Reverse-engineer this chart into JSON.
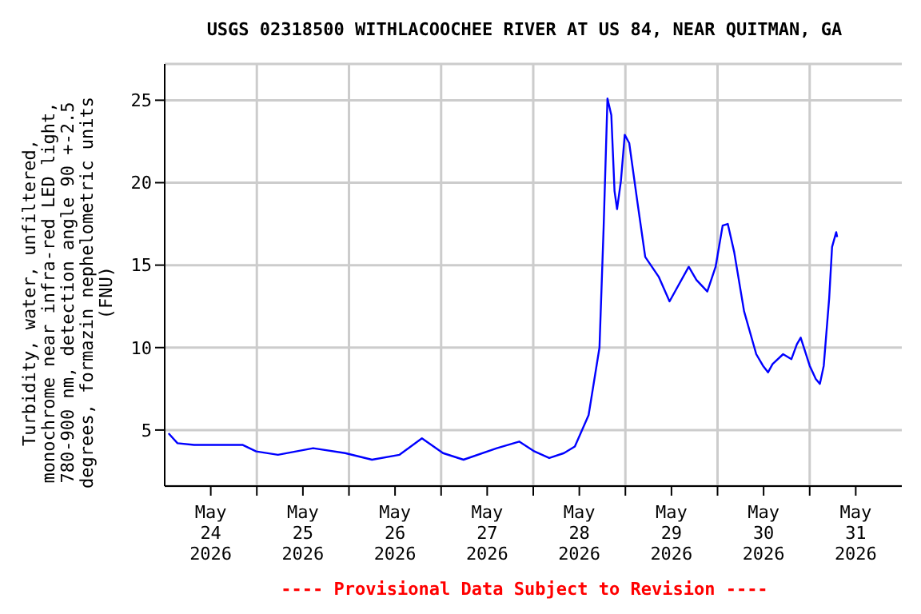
{
  "chart_data": {
    "type": "line",
    "title": "USGS 02318500 WITHLACOOCHEE RIVER AT US 84, NEAR QUITMAN, GA",
    "ylabel": "Turbidity, water, unfiltered,\nmonochrome near infra-red LED light,\n780-900 nm, detection angle 90 +-2.5\ndegrees, formazin nephelometric units\n(FNU)",
    "annotations": [
      "---- Provisional Data Subject to Revision ----"
    ],
    "x": [
      "2026-05-24T01:00",
      "2026-05-24T03:20",
      "2026-05-24T07:40",
      "2026-05-24T20:15",
      "2026-05-24T23:50",
      "2026-05-25T05:30",
      "2026-05-25T14:40",
      "2026-05-25T23:00",
      "2026-05-26T06:00",
      "2026-05-26T13:10",
      "2026-05-26T19:00",
      "2026-05-27T00:30",
      "2026-05-27T05:50",
      "2026-05-27T14:30",
      "2026-05-27T20:20",
      "2026-05-28T00:20",
      "2026-05-28T04:10",
      "2026-05-28T08:00",
      "2026-05-28T10:50",
      "2026-05-28T14:25",
      "2026-05-28T17:15",
      "2026-05-28T18:20",
      "2026-05-28T19:20",
      "2026-05-28T20:20",
      "2026-05-28T21:10",
      "2026-05-28T21:50",
      "2026-05-28T22:50",
      "2026-05-28T23:50",
      "2026-05-29T01:00",
      "2026-05-29T03:05",
      "2026-05-29T05:10",
      "2026-05-29T08:40",
      "2026-05-29T11:30",
      "2026-05-29T16:30",
      "2026-05-29T18:30",
      "2026-05-29T21:20",
      "2026-05-29T23:30",
      "2026-05-30T01:20",
      "2026-05-30T02:40",
      "2026-05-30T04:20",
      "2026-05-30T06:55",
      "2026-05-30T10:05",
      "2026-05-30T11:50",
      "2026-05-30T13:10",
      "2026-05-30T14:20",
      "2026-05-30T17:05",
      "2026-05-30T19:15",
      "2026-05-30T20:40",
      "2026-05-30T21:40",
      "2026-05-31T00:00",
      "2026-05-31T01:35",
      "2026-05-31T02:40",
      "2026-05-31T03:40",
      "2026-05-31T05:05",
      "2026-05-31T05:50",
      "2026-05-31T06:55",
      "2026-05-31T07:10"
    ],
    "series": [
      {
        "color": "#0000ff",
        "values": [
          4.8,
          4.2,
          4.1,
          4.1,
          3.7,
          3.5,
          3.9,
          3.6,
          3.2,
          3.5,
          4.5,
          3.6,
          3.2,
          3.9,
          4.3,
          3.7,
          3.3,
          3.6,
          4.0,
          5.9,
          10.0,
          17.3,
          25.1,
          24.1,
          19.5,
          18.4,
          20.1,
          22.9,
          22.4,
          18.9,
          15.5,
          14.3,
          12.8,
          14.9,
          14.1,
          13.4,
          14.9,
          17.4,
          17.5,
          15.8,
          12.2,
          9.6,
          8.9,
          8.5,
          9.0,
          9.6,
          9.3,
          10.2,
          10.6,
          8.9,
          8.1,
          7.8,
          8.9,
          13.0,
          16.1,
          17.0,
          16.7
        ]
      }
    ],
    "xlim": [
      "2026-05-24T00:00",
      "2026-06-01T00:00"
    ],
    "xticks": [
      {
        "value": "2026-05-24T12:00",
        "label": "May\n24\n2026"
      },
      {
        "value": "2026-05-25T00:00",
        "label": null
      },
      {
        "value": "2026-05-25T12:00",
        "label": "May\n25\n2026"
      },
      {
        "value": "2026-05-26T00:00",
        "label": null
      },
      {
        "value": "2026-05-26T12:00",
        "label": "May\n26\n2026"
      },
      {
        "value": "2026-05-27T00:00",
        "label": null
      },
      {
        "value": "2026-05-27T12:00",
        "label": "May\n27\n2026"
      },
      {
        "value": "2026-05-28T00:00",
        "label": null
      },
      {
        "value": "2026-05-28T12:00",
        "label": "May\n28\n2026"
      },
      {
        "value": "2026-05-29T00:00",
        "label": null
      },
      {
        "value": "2026-05-29T12:00",
        "label": "May\n29\n2026"
      },
      {
        "value": "2026-05-30T00:00",
        "label": null
      },
      {
        "value": "2026-05-30T12:00",
        "label": "May\n30\n2026"
      },
      {
        "value": "2026-05-31T00:00",
        "label": null
      },
      {
        "value": "2026-05-31T12:00",
        "label": "May\n31\n2026"
      }
    ],
    "ylim": [
      1.6,
      27.2
    ],
    "yticks": [
      5,
      10,
      15,
      20,
      25
    ],
    "grid": true,
    "legend": false,
    "marker": "none",
    "line_style": "solid"
  }
}
